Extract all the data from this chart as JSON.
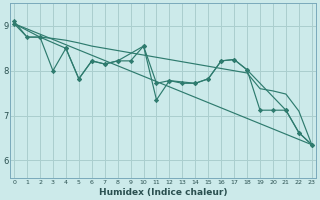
{
  "title": "",
  "xlabel": "Humidex (Indice chaleur)",
  "background_color": "#cceaea",
  "line_color": "#2e7b6e",
  "grid_color": "#aacece",
  "x_ticks": [
    0,
    1,
    2,
    3,
    4,
    5,
    6,
    7,
    8,
    9,
    10,
    11,
    12,
    13,
    14,
    15,
    16,
    17,
    18,
    19,
    20,
    21,
    22,
    23
  ],
  "y_ticks": [
    6,
    7,
    8,
    9
  ],
  "ylim": [
    5.6,
    9.5
  ],
  "xlim": [
    -0.3,
    23.3
  ],
  "series_zigzag": {
    "x": [
      0,
      1,
      2,
      3,
      4,
      5,
      6,
      7,
      8,
      9,
      10,
      11,
      12,
      13,
      14,
      15,
      16,
      17,
      18,
      19,
      20,
      21,
      22,
      23
    ],
    "y": [
      9.1,
      8.75,
      8.75,
      8.0,
      8.5,
      7.82,
      8.22,
      8.15,
      8.22,
      8.22,
      8.55,
      7.72,
      7.78,
      7.72,
      7.72,
      7.82,
      8.22,
      8.25,
      8.02,
      7.12,
      7.12,
      7.12,
      6.62,
      6.35
    ]
  },
  "series_trend": {
    "x": [
      0,
      23
    ],
    "y": [
      9.05,
      6.35
    ]
  },
  "series_upper": {
    "x": [
      0,
      1,
      2,
      3,
      4,
      5,
      6,
      7,
      8,
      9,
      10,
      11,
      12,
      13,
      14,
      15,
      16,
      17,
      18,
      19,
      20,
      21,
      22,
      23
    ],
    "y": [
      9.05,
      8.75,
      8.75,
      8.72,
      8.68,
      8.62,
      8.55,
      8.5,
      8.45,
      8.4,
      8.35,
      8.3,
      8.25,
      8.2,
      8.15,
      8.1,
      8.05,
      8.0,
      7.95,
      7.6,
      7.55,
      7.48,
      7.1,
      6.35
    ]
  },
  "series_lower": {
    "x": [
      0,
      2,
      4,
      5,
      6,
      7,
      8,
      10,
      11,
      12,
      14,
      15,
      16,
      17,
      18,
      21,
      22,
      23
    ],
    "y": [
      9.05,
      8.75,
      8.5,
      7.82,
      8.22,
      8.15,
      8.22,
      8.55,
      7.35,
      7.78,
      7.72,
      7.82,
      8.22,
      8.25,
      8.02,
      7.12,
      6.62,
      6.35
    ]
  }
}
